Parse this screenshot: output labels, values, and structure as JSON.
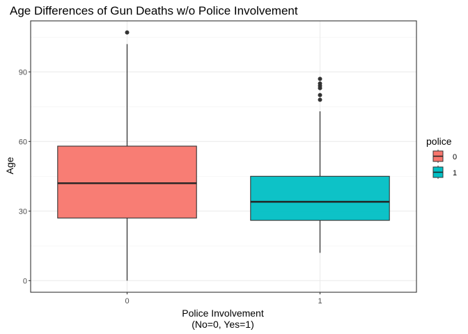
{
  "chart_data": {
    "type": "boxplot",
    "title": "Age Differences of Gun Deaths w/o Police Involvement",
    "xlabel_lines": [
      "Police Involvement",
      "(No=0, Yes=1)"
    ],
    "ylabel": "Age",
    "categories": [
      "0",
      "1"
    ],
    "ylim": [
      -5,
      112
    ],
    "y_ticks": [
      0,
      30,
      60,
      90
    ],
    "grid": true,
    "legend": {
      "title": "police",
      "position": "right",
      "entries": [
        {
          "label": "0",
          "color": "#F8766D"
        },
        {
          "label": "1",
          "color": "#00BFC4"
        }
      ]
    },
    "boxes": [
      {
        "category": "0",
        "min": 0,
        "q1": 27,
        "median": 42,
        "q3": 58,
        "max": 102,
        "outliers": [
          107
        ],
        "color": "#F8766D"
      },
      {
        "category": "1",
        "min": 12,
        "q1": 26,
        "median": 34,
        "q3": 45,
        "max": 73,
        "outliers": [
          78,
          80,
          83,
          84,
          85,
          87
        ],
        "color": "#00BFC4"
      }
    ]
  }
}
